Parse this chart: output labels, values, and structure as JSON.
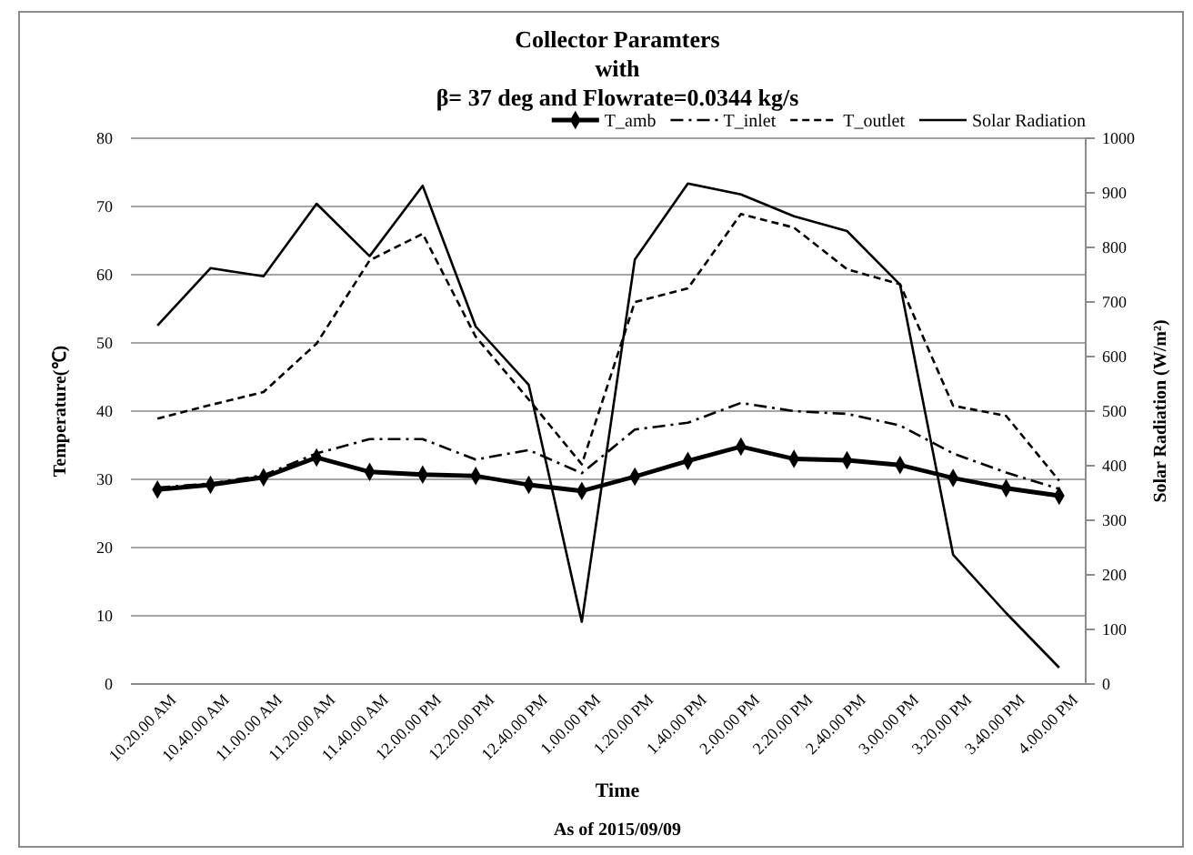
{
  "chart_data": {
    "type": "line",
    "title": "Collector Paramters\nwith\nβ= 37 deg and Flowrate=0.0344 kg/s",
    "xlabel": "Time",
    "ylabel": "Temperature(℃)",
    "y2label": "Solar Radiation (W/m²)",
    "annotations": [
      "As of 2015/09/09"
    ],
    "categories": [
      "10.20.00 AM",
      "10.40.00 AM",
      "11.00.00 AM",
      "11.20.00 AM",
      "11.40.00 AM",
      "12.00.00 PM",
      "12.20.00 PM",
      "12.40.00 PM",
      "1.00.00 PM",
      "1.20.00 PM",
      "1.40.00 PM",
      "2.00.00 PM",
      "2.20.00 PM",
      "2.40.00 PM",
      "3.00.00 PM",
      "3.20.00 PM",
      "3.40.00 PM",
      "4.00.00 PM"
    ],
    "series": [
      {
        "name": "T_amb",
        "color": "#000000",
        "marker": "diamond",
        "line_style": "solid",
        "values": [
          28.5,
          29.2,
          30.3,
          33.2,
          31.1,
          30.7,
          30.5,
          29.2,
          28.3,
          30.4,
          32.7,
          34.8,
          33.0,
          32.8,
          32.1,
          30.2,
          28.7,
          27.6
        ]
      },
      {
        "name": "T_inlet",
        "color": "#000000",
        "line_style": "dashdot",
        "values": [
          28.8,
          29.4,
          30.6,
          33.8,
          35.9,
          35.9,
          32.9,
          34.3,
          30.9,
          37.3,
          38.3,
          41.2,
          40.0,
          39.6,
          37.9,
          33.8,
          31.0,
          28.6
        ]
      },
      {
        "name": "T_outlet",
        "color": "#000000",
        "line_style": "dashed",
        "values": [
          38.9,
          40.9,
          42.8,
          49.9,
          62.1,
          66.0,
          50.9,
          41.7,
          32.2,
          56.0,
          58.0,
          68.9,
          66.9,
          60.8,
          58.6,
          40.8,
          39.3,
          29.8
        ]
      },
      {
        "name": "Solar Radiation",
        "color": "#000000",
        "line_style": "solid",
        "axis": "y2",
        "values": [
          657,
          762,
          747,
          880,
          784,
          913,
          655,
          548,
          114,
          778,
          917,
          897,
          857,
          830,
          732,
          237,
          130,
          30
        ]
      }
    ],
    "ylim": [
      0,
      80
    ],
    "yticks": [
      0,
      10,
      20,
      30,
      40,
      50,
      60,
      70,
      80
    ],
    "y2lim": [
      0,
      1000
    ],
    "y2ticks": [
      0,
      100,
      200,
      300,
      400,
      500,
      600,
      700,
      800,
      900,
      1000
    ],
    "grid": "y",
    "legend": "top right"
  }
}
